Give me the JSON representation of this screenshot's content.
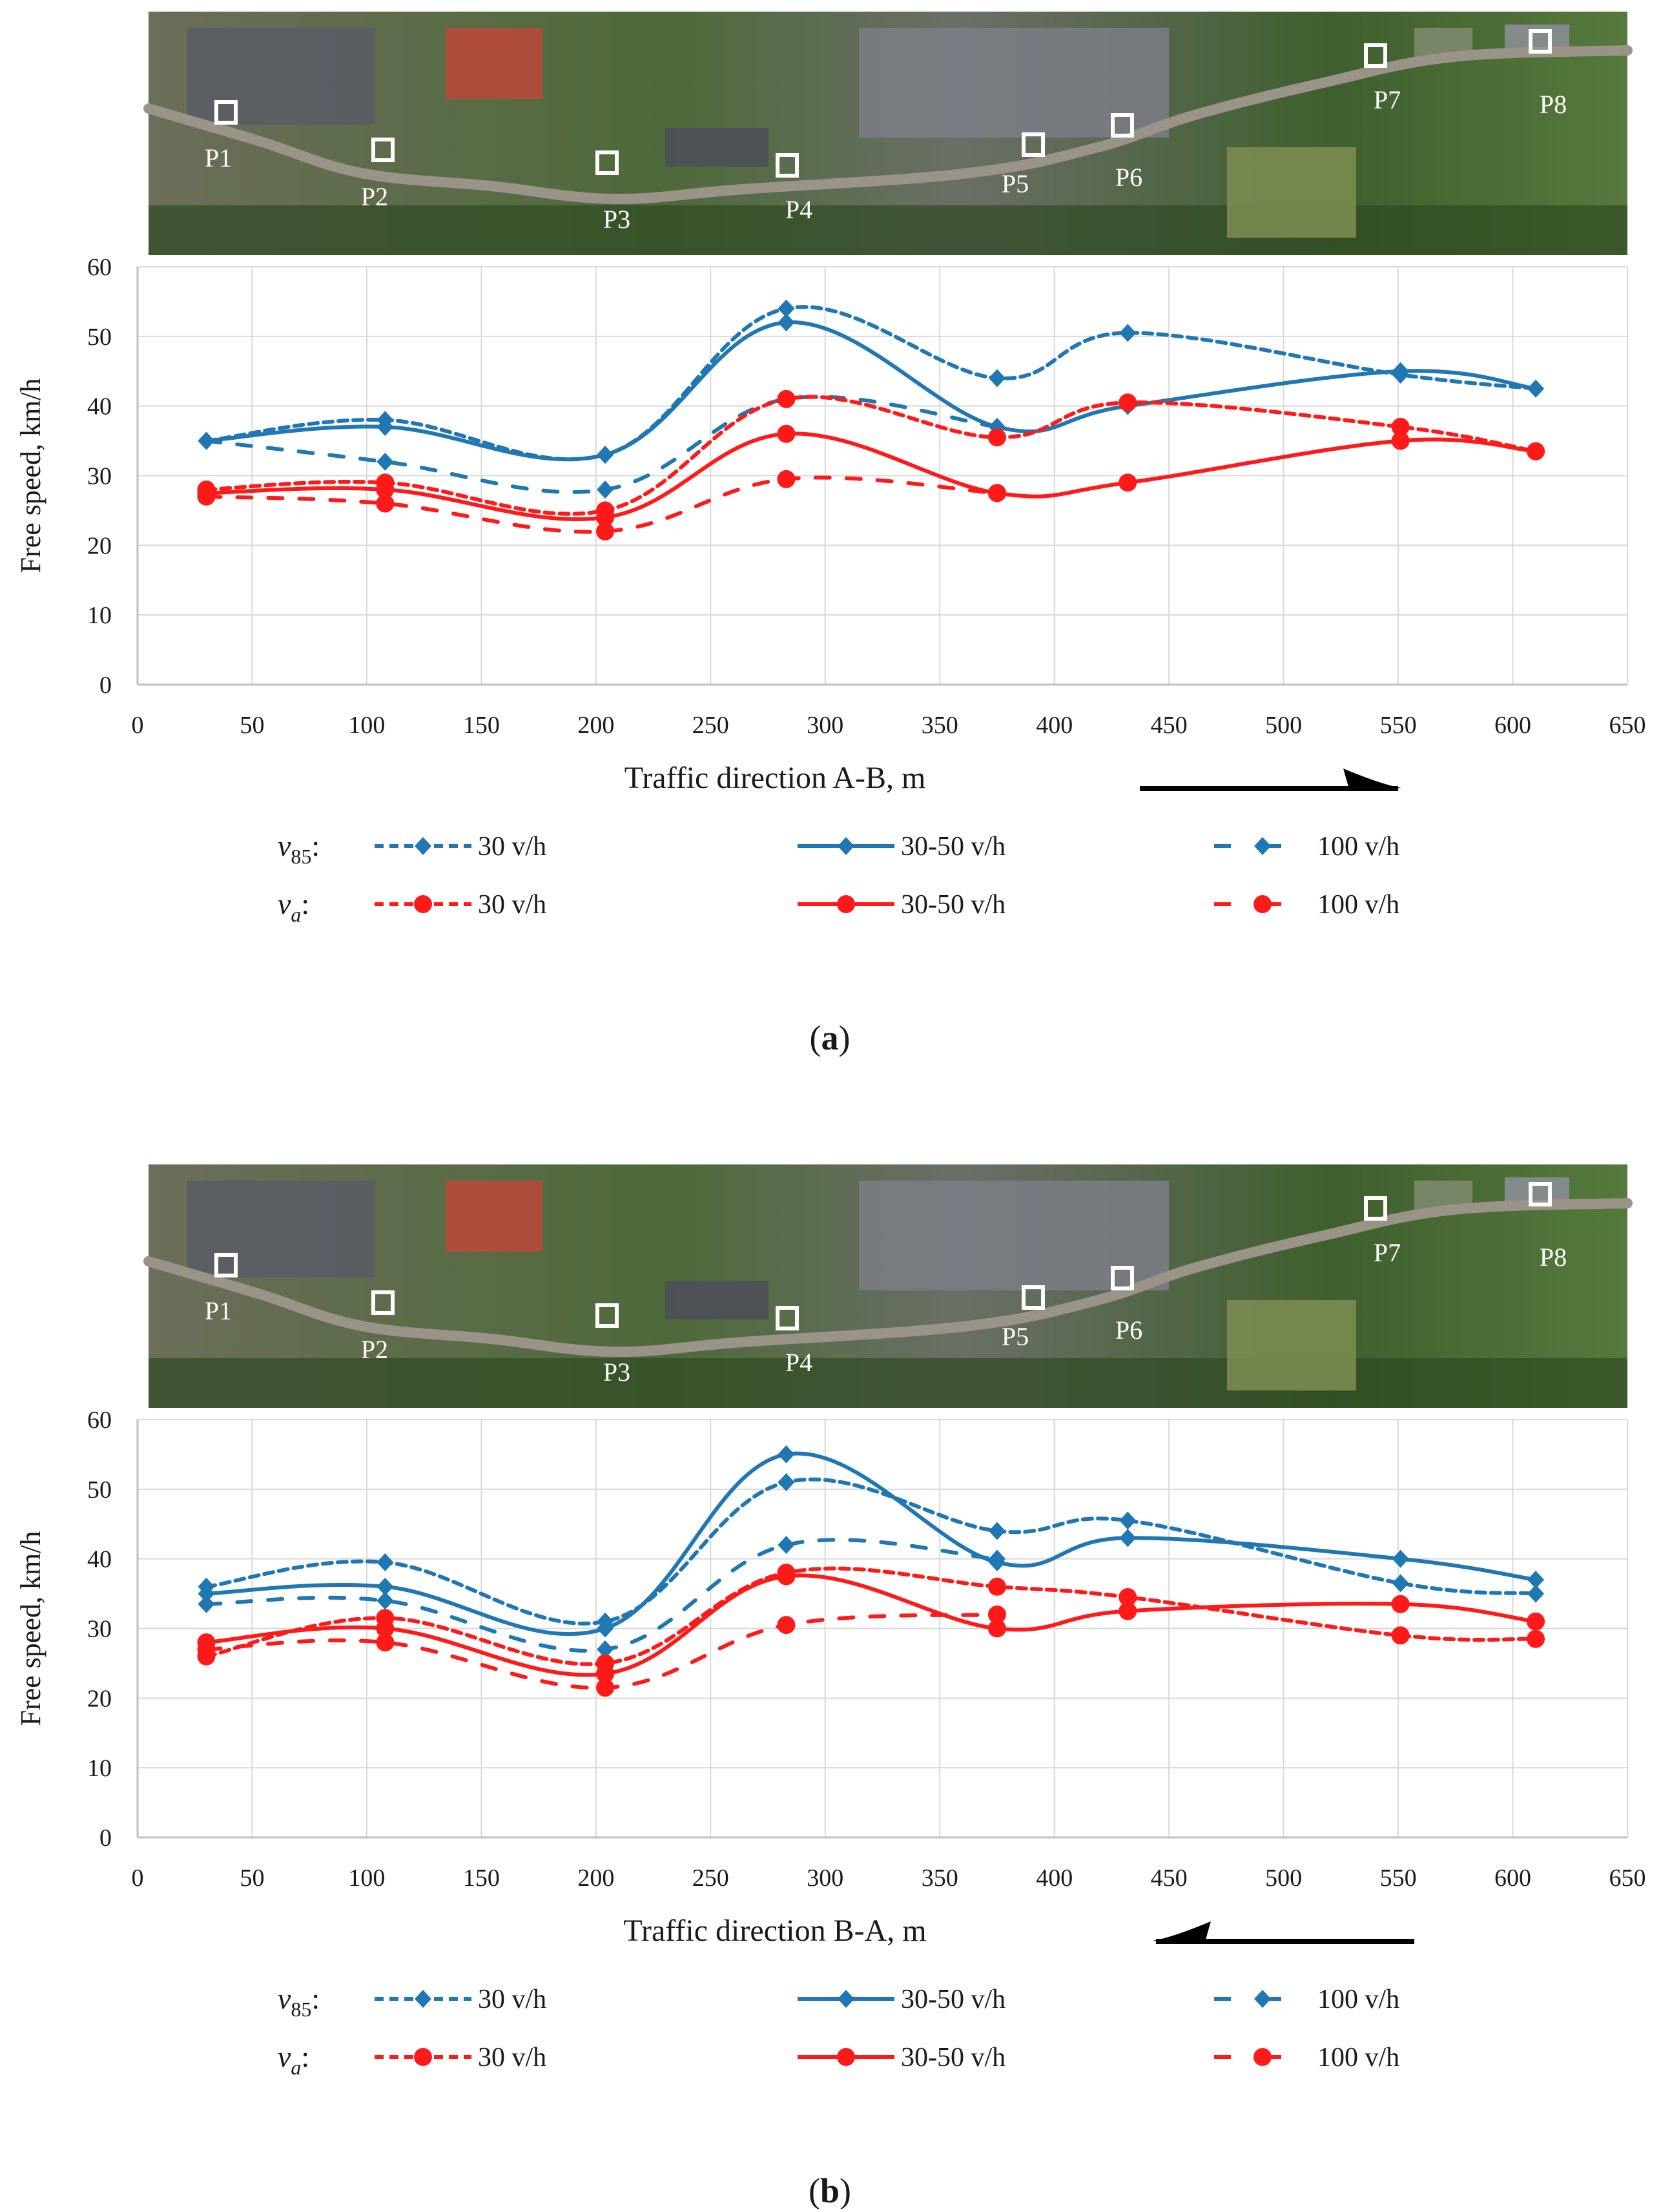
{
  "colors": {
    "blue": "#1f77b4",
    "red": "#ff1a1a",
    "grid": "#d9d9d9",
    "axis": "#bfbfbf",
    "text": "#1a1a1a"
  },
  "legend": {
    "v85_symbol": "v",
    "v85_subscript": "85",
    "va_symbol": "v",
    "va_subscript": "a",
    "colon": ":",
    "entries": [
      "30 v/h",
      "30-50 v/h",
      "100 v/h"
    ]
  },
  "aerial": {
    "point_labels": [
      "P1",
      "P2",
      "P3",
      "P4",
      "P5",
      "P6",
      "P7",
      "P8"
    ]
  },
  "chart_data": [
    {
      "type": "line",
      "panel_label": "a",
      "caption_open": "(",
      "caption_close": ")",
      "title": "",
      "xlabel": "Traffic direction A-B, m",
      "ylabel": "Free speed, km/h",
      "xlim": [
        0,
        650
      ],
      "ylim": [
        0,
        60
      ],
      "xticks": [
        0,
        50,
        100,
        150,
        200,
        250,
        300,
        350,
        400,
        450,
        500,
        550,
        600,
        650
      ],
      "yticks": [
        0,
        10,
        20,
        30,
        40,
        50,
        60
      ],
      "grid": true,
      "direction": "right",
      "series": [
        {
          "name": "v85 30 v/h",
          "x": [
            30,
            108,
            204,
            283,
            375,
            432,
            551,
            610
          ],
          "values": [
            35,
            38,
            33,
            54,
            44,
            50.5,
            44.5,
            42.5
          ]
        },
        {
          "name": "v85 30-50 v/h",
          "x": [
            30,
            108,
            204,
            283,
            375,
            432,
            551,
            610
          ],
          "values": [
            35,
            37,
            33,
            52,
            37,
            40,
            45,
            42.5
          ]
        },
        {
          "name": "v85 100 v/h",
          "x": [
            30,
            108,
            204,
            283,
            375
          ],
          "values": [
            35,
            32,
            28,
            41,
            37
          ]
        },
        {
          "name": "va 30 v/h",
          "x": [
            30,
            108,
            204,
            283,
            375,
            432,
            551,
            610
          ],
          "values": [
            28,
            29,
            25,
            41,
            35.5,
            40.5,
            37,
            33.5
          ]
        },
        {
          "name": "va 30-50 v/h",
          "x": [
            30,
            108,
            204,
            283,
            375,
            432,
            551,
            610
          ],
          "values": [
            27.5,
            28,
            24,
            36,
            27.5,
            29,
            35,
            33.5
          ]
        },
        {
          "name": "va 100 v/h",
          "x": [
            30,
            108,
            204,
            283,
            375
          ],
          "values": [
            27,
            26,
            22,
            29.5,
            27.5
          ]
        }
      ]
    },
    {
      "type": "line",
      "panel_label": "b",
      "caption_open": "(",
      "caption_close": ")",
      "title": "",
      "xlabel": "Traffic direction B-A, m",
      "ylabel": "Free speed, km/h",
      "xlim": [
        0,
        650
      ],
      "ylim": [
        0,
        60
      ],
      "xticks": [
        0,
        50,
        100,
        150,
        200,
        250,
        300,
        350,
        400,
        450,
        500,
        550,
        600,
        650
      ],
      "yticks": [
        0,
        10,
        20,
        30,
        40,
        50,
        60
      ],
      "grid": true,
      "direction": "left",
      "series": [
        {
          "name": "v85 30 v/h",
          "x": [
            30,
            108,
            204,
            283,
            375,
            432,
            551,
            610
          ],
          "values": [
            36,
            39.5,
            31,
            51,
            44,
            45.5,
            36.5,
            35
          ]
        },
        {
          "name": "v85 30-50 v/h",
          "x": [
            30,
            108,
            204,
            283,
            375,
            432,
            551,
            610
          ],
          "values": [
            35,
            36,
            30,
            55,
            39.5,
            43,
            40,
            37
          ]
        },
        {
          "name": "v85 100 v/h",
          "x": [
            30,
            108,
            204,
            283,
            375
          ],
          "values": [
            33.5,
            34,
            27,
            42,
            40
          ]
        },
        {
          "name": "va 30 v/h",
          "x": [
            30,
            108,
            204,
            283,
            375,
            432,
            551,
            610
          ],
          "values": [
            26,
            31.5,
            25,
            38,
            36,
            34.5,
            29,
            28.5
          ]
        },
        {
          "name": "va 30-50 v/h",
          "x": [
            30,
            108,
            204,
            283,
            375,
            432,
            551,
            610
          ],
          "values": [
            28,
            30,
            23.5,
            37.5,
            30,
            32.5,
            33.5,
            31
          ]
        },
        {
          "name": "va 100 v/h",
          "x": [
            30,
            108,
            204,
            283,
            375
          ],
          "values": [
            27,
            28,
            21.5,
            30.5,
            32
          ]
        }
      ]
    }
  ]
}
